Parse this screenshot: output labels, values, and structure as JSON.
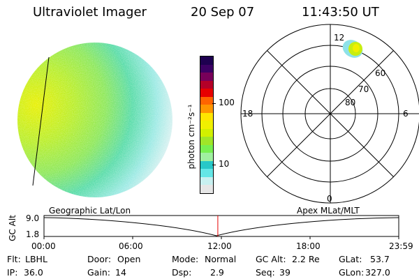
{
  "header": {
    "instrument": "Ultraviolet Imager",
    "date": "20 Sep 07",
    "time": "11:43:50 UT"
  },
  "colorbar": {
    "label": "photon cm⁻²s⁻¹",
    "ticks": [
      "100",
      "10"
    ],
    "colors": [
      "#e6e6e6",
      "#c8f0f0",
      "#64e6e6",
      "#28c8c8",
      "#a0f0a0",
      "#78f050",
      "#a0e628",
      "#d2f000",
      "#f0f000",
      "#ffe600",
      "#ff9600",
      "#ff6400",
      "#e60000",
      "#b40028",
      "#78005a",
      "#3c0064",
      "#1e0050"
    ]
  },
  "polar": {
    "mlt_labels": [
      "12",
      "18",
      "6",
      "0"
    ],
    "mlat_labels": [
      "60",
      "70",
      "80"
    ]
  },
  "timeline": {
    "ylabel": "GC Alt",
    "yticks": [
      "9.0",
      "1.8"
    ],
    "left_caption": "Geographic Lat/Lon",
    "right_caption": "Apex MLat/MLT",
    "xticks": [
      "00:00",
      "06:00",
      "12:00",
      "18:00",
      "23:59"
    ],
    "current_time_fraction": 0.49
  },
  "status": [
    {
      "label": "Flt:",
      "value": "LBHL"
    },
    {
      "label": "IP:",
      "value": "36.0"
    },
    {
      "label": "Door:",
      "value": "Open"
    },
    {
      "label": "Gain:",
      "value": "14"
    },
    {
      "label": "Mode:",
      "value": "Normal"
    },
    {
      "label": "Dsp:",
      "value": "2.9"
    },
    {
      "label": "GC Alt:",
      "value": "2.2 Re"
    },
    {
      "label": "Seq:",
      "value": "39"
    },
    {
      "label": "GLat:",
      "value": "53.7"
    },
    {
      "label": "GLon:",
      "value": "327.0"
    }
  ]
}
